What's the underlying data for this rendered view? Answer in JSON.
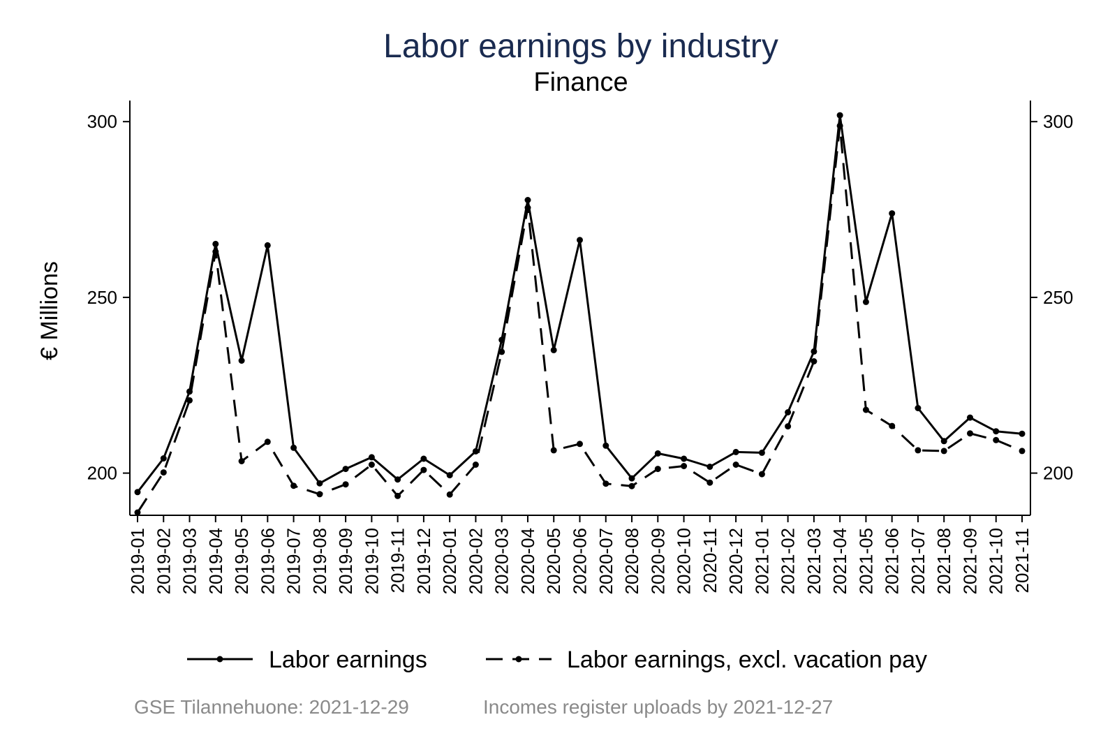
{
  "chart_data": {
    "type": "line",
    "title": "Labor earnings by industry",
    "subtitle": "Finance",
    "ylabel": "€ Millions",
    "xlabel": "",
    "ylim": [
      188,
      306
    ],
    "yticks": [
      200,
      250,
      300
    ],
    "ytick_labels": [
      "200",
      "250",
      "300"
    ],
    "grid": false,
    "legend_position": "bottom",
    "categories": [
      "2019-01",
      "2019-02",
      "2019-03",
      "2019-04",
      "2019-05",
      "2019-06",
      "2019-07",
      "2019-08",
      "2019-09",
      "2019-10",
      "2019-11",
      "2019-12",
      "2020-01",
      "2020-02",
      "2020-03",
      "2020-04",
      "2020-05",
      "2020-06",
      "2020-07",
      "2020-08",
      "2020-09",
      "2020-10",
      "2020-11",
      "2020-12",
      "2021-01",
      "2021-02",
      "2021-03",
      "2021-04",
      "2021-05",
      "2021-06",
      "2021-07",
      "2021-08",
      "2021-09",
      "2021-10",
      "2021-11"
    ],
    "series": [
      {
        "name": "Labor earnings",
        "style": "solid",
        "color": "#000000",
        "values": [
          194.6,
          204.2,
          223.2,
          265.2,
          232.0,
          264.8,
          207.2,
          197.1,
          201.2,
          204.5,
          198.2,
          204.1,
          199.4,
          206.2,
          237.9,
          277.7,
          235.0,
          266.3,
          207.8,
          198.5,
          205.6,
          204.1,
          201.8,
          206.0,
          205.8,
          217.3,
          234.6,
          301.8,
          248.7,
          273.9,
          218.5,
          209.1,
          215.8,
          211.9,
          211.2
        ]
      },
      {
        "name": "Labor earnings, excl. vacation pay",
        "style": "dashed",
        "color": "#000000",
        "values": [
          188.8,
          200.2,
          220.7,
          263.0,
          203.4,
          208.9,
          196.4,
          194.0,
          196.8,
          202.4,
          193.5,
          200.9,
          193.9,
          202.4,
          234.5,
          275.5,
          206.5,
          208.3,
          197.0,
          196.3,
          201.2,
          202.0,
          197.3,
          202.4,
          199.7,
          213.3,
          231.8,
          298.8,
          218.0,
          213.4,
          206.5,
          206.3,
          211.3,
          209.4,
          206.3
        ]
      }
    ]
  },
  "legend": {
    "items": [
      {
        "label": "Labor earnings"
      },
      {
        "label": "Labor earnings, excl. vacation pay"
      }
    ]
  },
  "footer": {
    "source": "GSE Tilannehuone: 2021-12-29",
    "note": "Incomes register uploads by 2021-12-27"
  }
}
